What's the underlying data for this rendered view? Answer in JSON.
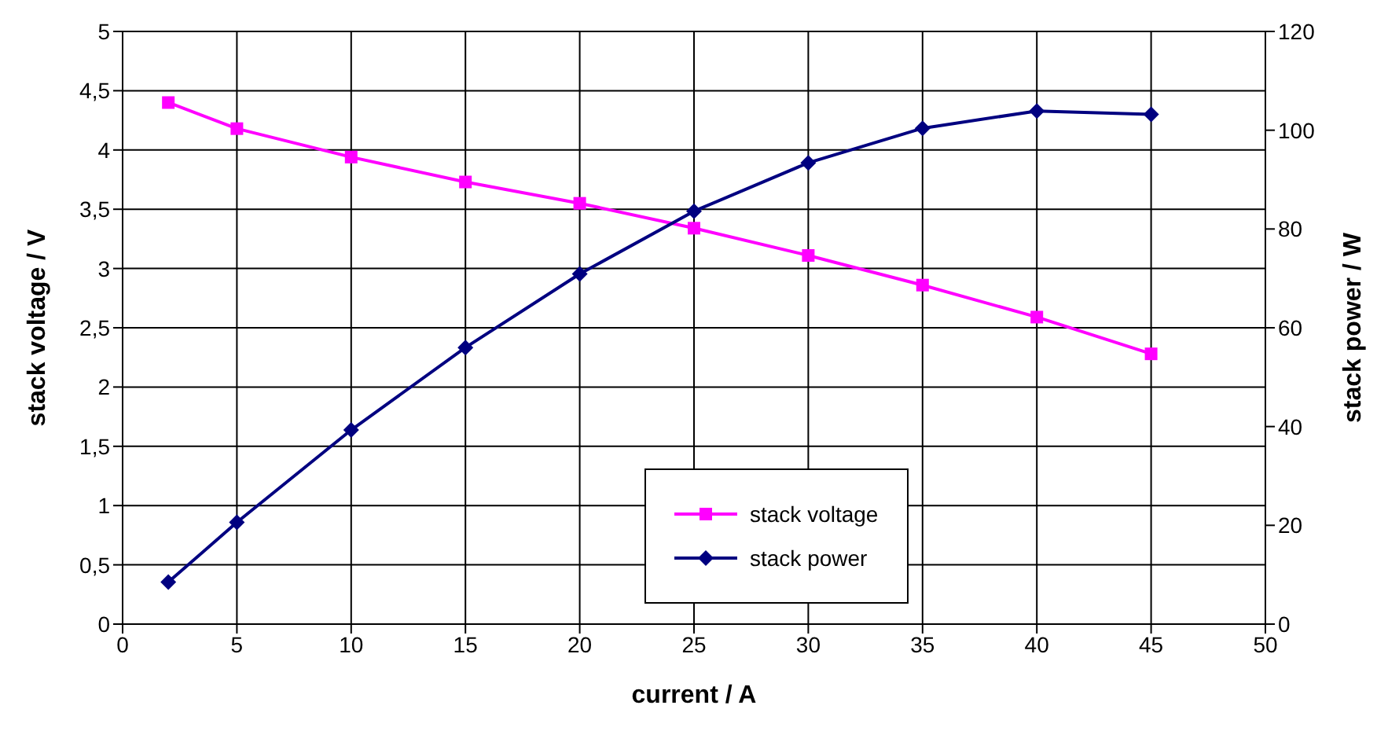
{
  "chart_data": {
    "type": "line",
    "xlabel": "current / A",
    "ylabel": "stack voltage / V",
    "y2label": "stack power / W",
    "x": [
      2,
      5,
      10,
      15,
      20,
      25,
      30,
      35,
      40,
      45
    ],
    "series": [
      {
        "name": "stack voltage",
        "color": "#ff00ff",
        "marker": "square",
        "values": [
          4.4,
          4.18,
          3.94,
          3.73,
          3.55,
          3.34,
          3.11,
          2.86,
          2.59,
          2.28
        ]
      },
      {
        "name": "stack power",
        "color": "#000080",
        "marker": "diamond",
        "axis": "y2",
        "values": [
          8.5,
          20.6,
          39.3,
          56,
          70.9,
          83.6,
          93.4,
          100.4,
          103.9,
          103.2
        ]
      }
    ],
    "xlim": [
      0,
      50
    ],
    "xticks": [
      0,
      5,
      10,
      15,
      20,
      25,
      30,
      35,
      40,
      45,
      50
    ],
    "ylim": [
      0,
      5
    ],
    "yticks": [
      0,
      {
        "value": 0.5,
        "label": "0,5"
      },
      1,
      {
        "value": 1.5,
        "label": "1,5"
      },
      2,
      {
        "value": 2.5,
        "label": "2,5"
      },
      3,
      {
        "value": 3.5,
        "label": "3,5"
      },
      4,
      {
        "value": 4.5,
        "label": "4,5"
      },
      5
    ],
    "y2lim": [
      0,
      120
    ],
    "y2ticks": [
      0,
      20,
      40,
      60,
      80,
      100,
      120
    ],
    "grid": true,
    "legend": "bottom",
    "line_style": "solid"
  }
}
